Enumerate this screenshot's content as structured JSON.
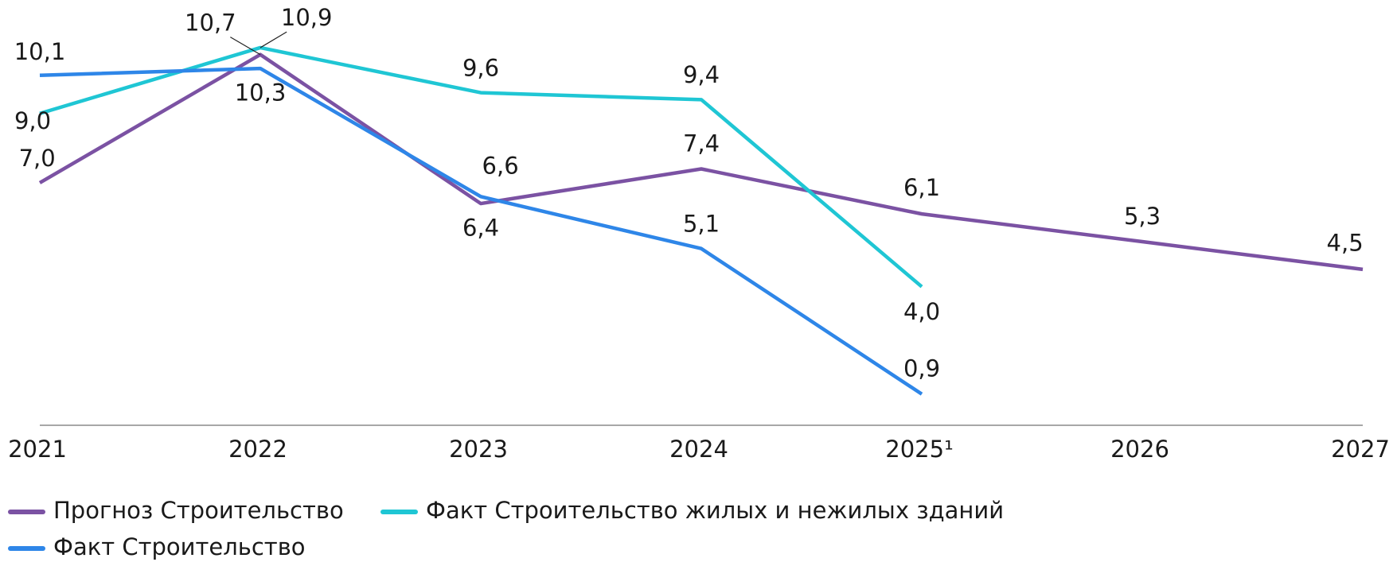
{
  "chart_data": {
    "type": "line",
    "categories": [
      "2021",
      "2022",
      "2023",
      "2024",
      "2025¹",
      "2026",
      "2027"
    ],
    "series": [
      {
        "name": "Прогноз Строительство",
        "color": "#7b52a3",
        "values": [
          7.0,
          10.7,
          6.4,
          7.4,
          6.1,
          5.3,
          4.5
        ],
        "value_labels": [
          "7,0",
          "10,7",
          "6,4",
          "7,4",
          "6,1",
          "5,3",
          "4,5"
        ]
      },
      {
        "name": "Факт Строительство жилых и нежилых зданий",
        "color": "#1fc6d4",
        "values": [
          9.0,
          10.9,
          9.6,
          9.4,
          4.0,
          null,
          null
        ],
        "value_labels": [
          "9,0",
          "10,9",
          "9,6",
          "9,4",
          "4,0",
          null,
          null
        ]
      },
      {
        "name": "Факт Строительство",
        "color": "#2e86e8",
        "values": [
          10.1,
          10.3,
          6.6,
          5.1,
          0.9,
          null,
          null
        ],
        "value_labels": [
          "10,1",
          "10,3",
          "6,6",
          "5,1",
          "0,9",
          null,
          null
        ]
      }
    ],
    "ylim": [
      0,
      12
    ],
    "grid": false,
    "legend": "bottom"
  }
}
